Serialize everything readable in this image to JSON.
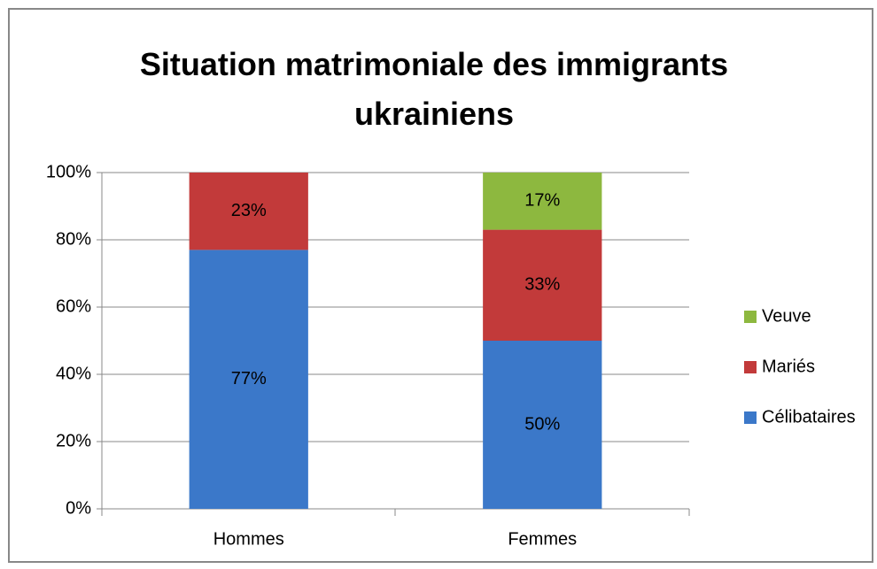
{
  "chart_data": {
    "type": "stacked_bar",
    "title": "Situation matrimoniale des immigrants ukrainiens",
    "categories": [
      "Hommes",
      "Femmes"
    ],
    "series": [
      {
        "name": "Célibataires",
        "color": "#3b78c9",
        "values": [
          77,
          50
        ],
        "value_labels": [
          "77%",
          "50%"
        ]
      },
      {
        "name": "Mariés",
        "color": "#c23a3a",
        "values": [
          23,
          33
        ],
        "value_labels": [
          "23%",
          "33%"
        ]
      },
      {
        "name": "Veuve",
        "color": "#8db83f",
        "values": [
          0,
          17
        ],
        "value_labels": [
          null,
          "17%"
        ]
      }
    ],
    "ylim": [
      0,
      100
    ],
    "yticks": [
      {
        "value": 0,
        "label": "0%"
      },
      {
        "value": 20,
        "label": "20%"
      },
      {
        "value": 40,
        "label": "40%"
      },
      {
        "value": 60,
        "label": "60%"
      },
      {
        "value": 80,
        "label": "80%"
      },
      {
        "value": 100,
        "label": "100%"
      }
    ],
    "grid": true,
    "legend": "right"
  }
}
